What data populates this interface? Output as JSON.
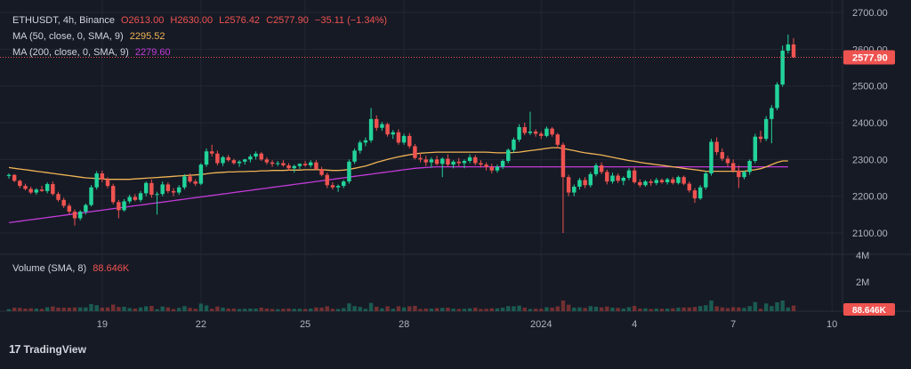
{
  "header": {
    "symbol": "ETHUSDT, 4h, Binance",
    "open": "O2613.00",
    "high": "H2630.00",
    "low": "L2576.42",
    "close": "C2577.90",
    "change": "−35.11 (−1.34%)"
  },
  "indicators": {
    "ma50_label": "MA (50, close, 0, SMA, 9)",
    "ma50_value": "2295.52",
    "ma200_label": "MA (200, close, 0, SMA, 9)",
    "ma200_value": "2279.60",
    "volume_label": "Volume (SMA, 8)",
    "volume_value": "88.646K"
  },
  "branding": {
    "name": "TradingView"
  },
  "colors": {
    "background": "#161a25",
    "up": "#26a69a",
    "up_bright": "#22d39a",
    "down": "#ef5350",
    "ma50": "#f0b455",
    "ma200": "#c23bd8",
    "grid": "#232733",
    "axis_text": "#b2b5be"
  },
  "chart_data": {
    "type": "candlestick",
    "symbol": "ETHUSDT",
    "interval": "4h",
    "exchange": "Binance",
    "last_price": 2577.9,
    "last_price_label": "2577.90",
    "price_axis": {
      "ticks": [
        2100,
        2200,
        2300,
        2400,
        2500,
        2600,
        2700
      ],
      "tick_labels": [
        "2100.00",
        "2200.00",
        "2300.00",
        "2400.00",
        "2500.00",
        "2600.00",
        "2700.00"
      ],
      "range": [
        2080,
        2720
      ]
    },
    "volume_axis": {
      "tick_labels": [
        "4M",
        "2M"
      ],
      "current_label": "88.646K"
    },
    "x_axis": {
      "tick_labels": [
        "19",
        "22",
        "25",
        "28",
        "2024",
        "4",
        "7",
        "10"
      ],
      "tick_candle_index": [
        17,
        35,
        54,
        72,
        97,
        114,
        132,
        150
      ]
    },
    "grid": true,
    "candles": [
      [
        2255,
        2262,
        2248,
        2258
      ],
      [
        2258,
        2260,
        2238,
        2242
      ],
      [
        2242,
        2245,
        2222,
        2228
      ],
      [
        2228,
        2234,
        2216,
        2220
      ],
      [
        2220,
        2226,
        2206,
        2210
      ],
      [
        2210,
        2222,
        2204,
        2218
      ],
      [
        2218,
        2228,
        2212,
        2214
      ],
      [
        2214,
        2238,
        2208,
        2233
      ],
      [
        2233,
        2240,
        2202,
        2206
      ],
      [
        2206,
        2212,
        2185,
        2190
      ],
      [
        2190,
        2196,
        2168,
        2174
      ],
      [
        2174,
        2180,
        2152,
        2158
      ],
      [
        2158,
        2164,
        2120,
        2140
      ],
      [
        2140,
        2162,
        2134,
        2158
      ],
      [
        2158,
        2180,
        2150,
        2176
      ],
      [
        2176,
        2230,
        2172,
        2224
      ],
      [
        2224,
        2268,
        2218,
        2262
      ],
      [
        2262,
        2270,
        2238,
        2246
      ],
      [
        2246,
        2252,
        2222,
        2228
      ],
      [
        2228,
        2234,
        2178,
        2184
      ],
      [
        2184,
        2190,
        2140,
        2162
      ],
      [
        2162,
        2192,
        2158,
        2186
      ],
      [
        2186,
        2204,
        2180,
        2198
      ],
      [
        2198,
        2206,
        2186,
        2190
      ],
      [
        2190,
        2214,
        2184,
        2208
      ],
      [
        2208,
        2240,
        2200,
        2236
      ],
      [
        2236,
        2246,
        2196,
        2204
      ],
      [
        2204,
        2212,
        2150,
        2206
      ],
      [
        2206,
        2240,
        2200,
        2232
      ],
      [
        2232,
        2238,
        2208,
        2214
      ],
      [
        2214,
        2222,
        2200,
        2210
      ],
      [
        2210,
        2230,
        2204,
        2224
      ],
      [
        2224,
        2260,
        2218,
        2254
      ],
      [
        2254,
        2262,
        2236,
        2240
      ],
      [
        2240,
        2246,
        2228,
        2234
      ],
      [
        2234,
        2290,
        2230,
        2286
      ],
      [
        2286,
        2330,
        2280,
        2322
      ],
      [
        2322,
        2340,
        2308,
        2316
      ],
      [
        2316,
        2324,
        2284,
        2290
      ],
      [
        2290,
        2310,
        2282,
        2306
      ],
      [
        2306,
        2312,
        2294,
        2298
      ],
      [
        2298,
        2302,
        2286,
        2290
      ],
      [
        2290,
        2298,
        2280,
        2294
      ],
      [
        2294,
        2302,
        2286,
        2300
      ],
      [
        2300,
        2314,
        2292,
        2308
      ],
      [
        2308,
        2322,
        2300,
        2316
      ],
      [
        2316,
        2320,
        2296,
        2300
      ],
      [
        2300,
        2306,
        2286,
        2292
      ],
      [
        2292,
        2298,
        2280,
        2288
      ],
      [
        2288,
        2296,
        2282,
        2290
      ],
      [
        2290,
        2298,
        2280,
        2284
      ],
      [
        2284,
        2290,
        2270,
        2276
      ],
      [
        2276,
        2286,
        2264,
        2282
      ],
      [
        2282,
        2290,
        2274,
        2288
      ],
      [
        2288,
        2296,
        2280,
        2284
      ],
      [
        2284,
        2298,
        2278,
        2292
      ],
      [
        2292,
        2298,
        2270,
        2274
      ],
      [
        2274,
        2280,
        2254,
        2258
      ],
      [
        2258,
        2264,
        2222,
        2230
      ],
      [
        2230,
        2238,
        2218,
        2224
      ],
      [
        2224,
        2232,
        2212,
        2228
      ],
      [
        2228,
        2244,
        2222,
        2240
      ],
      [
        2240,
        2300,
        2234,
        2294
      ],
      [
        2294,
        2330,
        2288,
        2324
      ],
      [
        2324,
        2352,
        2316,
        2346
      ],
      [
        2346,
        2360,
        2336,
        2352
      ],
      [
        2352,
        2440,
        2346,
        2410
      ],
      [
        2410,
        2420,
        2378,
        2386
      ],
      [
        2386,
        2402,
        2378,
        2396
      ],
      [
        2396,
        2400,
        2362,
        2368
      ],
      [
        2368,
        2380,
        2356,
        2374
      ],
      [
        2374,
        2382,
        2340,
        2346
      ],
      [
        2346,
        2370,
        2340,
        2364
      ],
      [
        2364,
        2372,
        2330,
        2336
      ],
      [
        2336,
        2342,
        2300,
        2304
      ],
      [
        2304,
        2318,
        2292,
        2300
      ],
      [
        2300,
        2310,
        2282,
        2292
      ],
      [
        2292,
        2306,
        2278,
        2300
      ],
      [
        2300,
        2310,
        2284,
        2288
      ],
      [
        2288,
        2306,
        2252,
        2302
      ],
      [
        2302,
        2314,
        2280,
        2286
      ],
      [
        2286,
        2298,
        2276,
        2294
      ],
      [
        2294,
        2304,
        2282,
        2290
      ],
      [
        2290,
        2300,
        2276,
        2296
      ],
      [
        2296,
        2314,
        2290,
        2306
      ],
      [
        2306,
        2312,
        2284,
        2290
      ],
      [
        2290,
        2298,
        2278,
        2286
      ],
      [
        2286,
        2292,
        2270,
        2280
      ],
      [
        2280,
        2288,
        2262,
        2270
      ],
      [
        2270,
        2286,
        2264,
        2280
      ],
      [
        2280,
        2300,
        2274,
        2296
      ],
      [
        2296,
        2330,
        2290,
        2326
      ],
      [
        2326,
        2360,
        2318,
        2354
      ],
      [
        2354,
        2396,
        2348,
        2388
      ],
      [
        2388,
        2400,
        2366,
        2372
      ],
      [
        2372,
        2430,
        2366,
        2376
      ],
      [
        2376,
        2382,
        2362,
        2370
      ],
      [
        2370,
        2376,
        2356,
        2364
      ],
      [
        2364,
        2390,
        2360,
        2384
      ],
      [
        2384,
        2388,
        2362,
        2368
      ],
      [
        2368,
        2372,
        2330,
        2340
      ],
      [
        2340,
        2346,
        2100,
        2252
      ],
      [
        2252,
        2258,
        2200,
        2210
      ],
      [
        2210,
        2232,
        2200,
        2226
      ],
      [
        2226,
        2250,
        2218,
        2244
      ],
      [
        2244,
        2252,
        2222,
        2230
      ],
      [
        2230,
        2266,
        2224,
        2260
      ],
      [
        2260,
        2290,
        2254,
        2284
      ],
      [
        2284,
        2292,
        2260,
        2266
      ],
      [
        2266,
        2272,
        2232,
        2240
      ],
      [
        2240,
        2264,
        2234,
        2256
      ],
      [
        2256,
        2262,
        2236,
        2242
      ],
      [
        2242,
        2254,
        2230,
        2250
      ],
      [
        2250,
        2276,
        2244,
        2270
      ],
      [
        2270,
        2278,
        2234,
        2238
      ],
      [
        2238,
        2246,
        2224,
        2230
      ],
      [
        2230,
        2244,
        2226,
        2240
      ],
      [
        2240,
        2246,
        2228,
        2236
      ],
      [
        2236,
        2250,
        2230,
        2244
      ],
      [
        2244,
        2248,
        2234,
        2238
      ],
      [
        2238,
        2250,
        2232,
        2246
      ],
      [
        2246,
        2252,
        2232,
        2236
      ],
      [
        2236,
        2256,
        2232,
        2252
      ],
      [
        2252,
        2256,
        2230,
        2234
      ],
      [
        2234,
        2240,
        2210,
        2216
      ],
      [
        2216,
        2222,
        2182,
        2194
      ],
      [
        2194,
        2230,
        2190,
        2224
      ],
      [
        2224,
        2268,
        2218,
        2262
      ],
      [
        2262,
        2356,
        2256,
        2348
      ],
      [
        2348,
        2360,
        2312,
        2320
      ],
      [
        2320,
        2330,
        2296,
        2302
      ],
      [
        2302,
        2310,
        2280,
        2290
      ],
      [
        2290,
        2300,
        2264,
        2270
      ],
      [
        2270,
        2284,
        2222,
        2252
      ],
      [
        2252,
        2270,
        2246,
        2266
      ],
      [
        2266,
        2300,
        2258,
        2296
      ],
      [
        2296,
        2370,
        2290,
        2362
      ],
      [
        2362,
        2378,
        2346,
        2356
      ],
      [
        2356,
        2418,
        2350,
        2410
      ],
      [
        2410,
        2448,
        2344,
        2440
      ],
      [
        2440,
        2510,
        2434,
        2504
      ],
      [
        2504,
        2610,
        2498,
        2596
      ],
      [
        2596,
        2640,
        2588,
        2613
      ],
      [
        2613,
        2630,
        2576,
        2578
      ]
    ],
    "volume_bar_heights": "shown as small bars along the bottom; values not labeled",
    "ma50": [
      2278,
      2276,
      2274,
      2272,
      2270,
      2268,
      2266,
      2264,
      2262,
      2260,
      2258,
      2256,
      2254,
      2252,
      2250,
      2249,
      2248,
      2247,
      2246,
      2246,
      2246,
      2246,
      2246,
      2247,
      2248,
      2249,
      2250,
      2251,
      2252,
      2253,
      2254,
      2255,
      2256,
      2257,
      2258,
      2259,
      2261,
      2263,
      2264,
      2265,
      2266,
      2266,
      2267,
      2267,
      2268,
      2268,
      2269,
      2269,
      2270,
      2270,
      2270,
      2271,
      2271,
      2271,
      2272,
      2272,
      2272,
      2272,
      2271,
      2270,
      2270,
      2271,
      2273,
      2276,
      2279,
      2282,
      2287,
      2292,
      2296,
      2300,
      2304,
      2307,
      2310,
      2313,
      2315,
      2317,
      2318,
      2319,
      2320,
      2320,
      2320,
      2320,
      2320,
      2320,
      2320,
      2320,
      2320,
      2320,
      2319,
      2318,
      2318,
      2318,
      2319,
      2320,
      2322,
      2324,
      2326,
      2328,
      2330,
      2332,
      2332,
      2330,
      2327,
      2324,
      2321,
      2318,
      2316,
      2314,
      2312,
      2309,
      2306,
      2303,
      2300,
      2297,
      2295,
      2292,
      2290,
      2288,
      2286,
      2284,
      2282,
      2280,
      2278,
      2276,
      2274,
      2272,
      2270,
      2268,
      2268,
      2268,
      2268,
      2268,
      2268,
      2268,
      2268,
      2270,
      2272,
      2275,
      2280,
      2286,
      2292,
      2296,
      2296
    ],
    "ma200": [
      2128,
      2130,
      2132,
      2134,
      2136,
      2138,
      2140,
      2142,
      2144,
      2146,
      2148,
      2150,
      2152,
      2154,
      2156,
      2158,
      2160,
      2162,
      2164,
      2166,
      2168,
      2170,
      2172,
      2174,
      2176,
      2178,
      2180,
      2182,
      2184,
      2186,
      2188,
      2190,
      2192,
      2194,
      2196,
      2198,
      2200,
      2202,
      2204,
      2206,
      2208,
      2210,
      2212,
      2214,
      2216,
      2218,
      2220,
      2222,
      2224,
      2226,
      2228,
      2230,
      2232,
      2234,
      2236,
      2238,
      2240,
      2242,
      2244,
      2246,
      2248,
      2250,
      2252,
      2254,
      2256,
      2258,
      2260,
      2262,
      2264,
      2266,
      2268,
      2270,
      2272,
      2274,
      2276,
      2277,
      2278,
      2279,
      2280,
      2280,
      2280,
      2280,
      2280,
      2280,
      2280,
      2280,
      2280,
      2280,
      2280,
      2280,
      2280,
      2280,
      2280,
      2280,
      2280,
      2280,
      2280,
      2280,
      2280,
      2280,
      2280,
      2280,
      2280,
      2280,
      2280,
      2280,
      2280,
      2280,
      2280,
      2280,
      2280,
      2280,
      2280,
      2280,
      2280,
      2280,
      2280,
      2280,
      2280,
      2280,
      2280,
      2280,
      2280,
      2280,
      2280,
      2280,
      2280,
      2280,
      2280,
      2280,
      2280,
      2280,
      2280,
      2280,
      2280,
      2280,
      2280,
      2280,
      2280,
      2280,
      2280,
      2280,
      2280
    ]
  }
}
